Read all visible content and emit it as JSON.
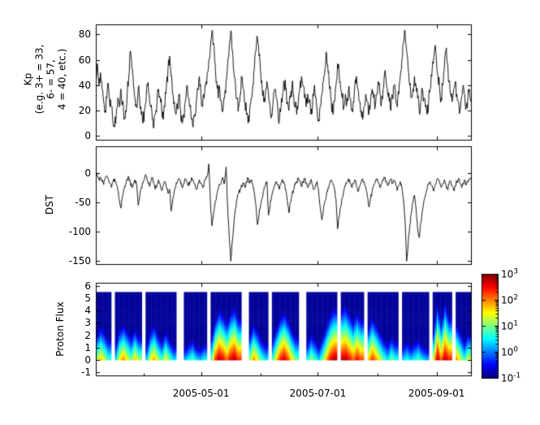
{
  "figure": {
    "background": "#ffffff",
    "line_color": "#000000"
  },
  "x_axis": {
    "range_days": [
      0,
      196
    ],
    "tick_days": [
      55,
      116,
      178
    ],
    "tick_labels": [
      "2005-05-01",
      "2005-07-01",
      "2005-09-01"
    ],
    "minor_tick_days": [
      25,
      55,
      86,
      116,
      147,
      178
    ]
  },
  "chart_data": [
    {
      "type": "line",
      "name": "kp",
      "ylabel": "Kp\n(e.g. 3+ = 33,\n6- = 57,\n4 = 40, etc.)",
      "ylim": [
        -3,
        88
      ],
      "yticks": [
        0,
        20,
        40,
        60,
        80
      ],
      "line_color": "#000000",
      "values": [
        47,
        57,
        40,
        50,
        37,
        27,
        20,
        30,
        40,
        23,
        23,
        10,
        7,
        17,
        30,
        23,
        37,
        27,
        13,
        20,
        33,
        47,
        67,
        53,
        40,
        30,
        23,
        37,
        27,
        17,
        10,
        20,
        27,
        40,
        33,
        23,
        13,
        7,
        17,
        27,
        37,
        30,
        20,
        13,
        23,
        40,
        53,
        63,
        47,
        33,
        27,
        17,
        23,
        33,
        20,
        10,
        17,
        27,
        40,
        30,
        23,
        13,
        7,
        17,
        27,
        37,
        47,
        33,
        23,
        30,
        40,
        50,
        60,
        70,
        83,
        73,
        57,
        43,
        30,
        37,
        27,
        20,
        30,
        43,
        57,
        70,
        83,
        67,
        50,
        40,
        30,
        23,
        33,
        47,
        37,
        27,
        17,
        10,
        20,
        30,
        40,
        53,
        67,
        77,
        63,
        50,
        37,
        27,
        33,
        43,
        33,
        23,
        17,
        27,
        37,
        30,
        20,
        13,
        23,
        33,
        43,
        37,
        27,
        20,
        30,
        40,
        33,
        23,
        17,
        27,
        37,
        47,
        40,
        30,
        23,
        33,
        27,
        17,
        23,
        37,
        30,
        20,
        13,
        23,
        33,
        43,
        53,
        65,
        50,
        37,
        27,
        17,
        27,
        40,
        57,
        50,
        37,
        30,
        23,
        33,
        27,
        37,
        30,
        20,
        27,
        40,
        47,
        37,
        27,
        20,
        13,
        23,
        33,
        27,
        17,
        27,
        37,
        30,
        23,
        33,
        43,
        33,
        27,
        37,
        50,
        43,
        33,
        27,
        20,
        30,
        40,
        30,
        23,
        33,
        47,
        60,
        73,
        83,
        67,
        53,
        40,
        30,
        37,
        47,
        40,
        30,
        20,
        27,
        37,
        30,
        23,
        17,
        27,
        37,
        47,
        57,
        70,
        60,
        47,
        37,
        30,
        40,
        53,
        67,
        57,
        43,
        33,
        27,
        37,
        43,
        33,
        27,
        20,
        30,
        40,
        33,
        23,
        30,
        37,
        27
      ]
    },
    {
      "type": "line",
      "name": "dst",
      "ylabel": "DST",
      "ylim": [
        -155,
        45
      ],
      "yticks": [
        0,
        -50,
        -100,
        -150
      ],
      "line_color": "#000000",
      "values": [
        5,
        -5,
        -12,
        -8,
        -15,
        -20,
        -10,
        -5,
        -12,
        -18,
        -25,
        -15,
        -10,
        -20,
        -30,
        -45,
        -60,
        -40,
        -28,
        -20,
        -12,
        -8,
        -15,
        -25,
        -18,
        -12,
        -20,
        -55,
        -38,
        -25,
        -18,
        -10,
        -5,
        -15,
        -22,
        -15,
        -8,
        -18,
        -28,
        -20,
        -12,
        -20,
        -30,
        -22,
        -15,
        -25,
        -35,
        -28,
        -65,
        -45,
        -32,
        -22,
        -15,
        -10,
        -18,
        -25,
        -18,
        -10,
        -15,
        -22,
        -15,
        -8,
        -12,
        -20,
        -28,
        -20,
        -12,
        -18,
        -25,
        -18,
        -10,
        -5,
        15,
        -50,
        -90,
        -70,
        -50,
        -38,
        -28,
        -20,
        -15,
        -10,
        -18,
        10,
        -60,
        -110,
        -150,
        -115,
        -85,
        -60,
        -45,
        -35,
        -28,
        -22,
        -18,
        -25,
        -15,
        -10,
        -18,
        -12,
        -20,
        -35,
        -55,
        -88,
        -70,
        -55,
        -42,
        -30,
        -22,
        -15,
        -72,
        -55,
        -40,
        -30,
        -22,
        -15,
        -20,
        -28,
        -18,
        -12,
        -18,
        -28,
        -48,
        -68,
        -50,
        -38,
        -28,
        -20,
        -15,
        -10,
        -15,
        -22,
        -15,
        -10,
        -18,
        -25,
        -18,
        -12,
        -20,
        -28,
        -20,
        -15,
        -35,
        -60,
        -80,
        -62,
        -48,
        -35,
        -25,
        -18,
        -12,
        -18,
        -28,
        -45,
        -95,
        -75,
        -58,
        -42,
        -30,
        -22,
        -15,
        -10,
        -18,
        -25,
        -18,
        -12,
        -22,
        -32,
        -24,
        -16,
        -10,
        -15,
        -25,
        -40,
        -58,
        -45,
        -32,
        -22,
        -15,
        -10,
        -18,
        -25,
        -18,
        -12,
        -8,
        -15,
        -22,
        -15,
        -10,
        -18,
        -12,
        -20,
        -30,
        -22,
        -15,
        -25,
        -45,
        -80,
        -150,
        -120,
        -90,
        -68,
        -50,
        -38,
        -60,
        -95,
        -110,
        -85,
        -65,
        -48,
        -38,
        -28,
        -20,
        -15,
        -22,
        -30,
        -22,
        -15,
        -10,
        -18,
        -25,
        -18,
        -12,
        -20,
        -28,
        -20,
        -14,
        -22,
        -30,
        -22,
        -15,
        -10,
        -18,
        -25,
        -18,
        -12,
        -20,
        -15,
        -10,
        -8
      ]
    },
    {
      "type": "heatmap",
      "name": "proton-flux",
      "ylabel": "Proton Flux",
      "ylim": [
        -1.25,
        6.25
      ],
      "yticks": [
        -1,
        0,
        1,
        2,
        3,
        4,
        5,
        6
      ],
      "bar_y_range": [
        0,
        5.5
      ],
      "colormap": "jet",
      "colorbar": {
        "scale": "log",
        "base": "10",
        "tick_exponents": [
          3,
          2,
          1,
          0,
          -1
        ],
        "tick_labels": [
          "10^3",
          "10^2",
          "10^1",
          "10^0",
          "10^-1"
        ]
      },
      "columns": [
        [
          0,
          1.2,
          2.2
        ],
        [
          2,
          1.8,
          2.8
        ],
        [
          4,
          1.4,
          2.4
        ],
        [
          6,
          0.8,
          1.8
        ],
        [
          10,
          0.5,
          1.5
        ],
        [
          12,
          1.6,
          2.6
        ],
        [
          14,
          2.0,
          3.0
        ],
        [
          16,
          1.5,
          2.5
        ],
        [
          18,
          1.0,
          2.0
        ],
        [
          20,
          1.8,
          2.6
        ],
        [
          22,
          1.2,
          2.0
        ],
        [
          26,
          0.4,
          1.2
        ],
        [
          28,
          1.5,
          2.4
        ],
        [
          30,
          1.9,
          3.0
        ],
        [
          32,
          1.3,
          2.2
        ],
        [
          34,
          0.8,
          1.6
        ],
        [
          36,
          1.6,
          2.4
        ],
        [
          38,
          1.0,
          1.8
        ],
        [
          40,
          0.5,
          1.2
        ],
        [
          46,
          0.3,
          1.0
        ],
        [
          48,
          0.6,
          1.4
        ],
        [
          50,
          0.9,
          1.8
        ],
        [
          52,
          0.5,
          1.2
        ],
        [
          54,
          0.3,
          1.0
        ],
        [
          56,
          0.6,
          1.4
        ],
        [
          60,
          1.0,
          2.0
        ],
        [
          62,
          2.4,
          3.4
        ],
        [
          64,
          2.9,
          4.2
        ],
        [
          66,
          2.6,
          3.8
        ],
        [
          68,
          2.2,
          3.2
        ],
        [
          70,
          2.7,
          4.0
        ],
        [
          72,
          2.9,
          4.4
        ],
        [
          74,
          2.4,
          3.5
        ],
        [
          80,
          1.2,
          2.2
        ],
        [
          82,
          2.0,
          3.0
        ],
        [
          84,
          1.5,
          2.5
        ],
        [
          86,
          0.9,
          1.8
        ],
        [
          88,
          0.5,
          1.4
        ],
        [
          92,
          0.8,
          1.8
        ],
        [
          94,
          1.8,
          2.8
        ],
        [
          96,
          2.5,
          3.6
        ],
        [
          98,
          2.8,
          4.0
        ],
        [
          100,
          2.3,
          3.4
        ],
        [
          102,
          1.6,
          2.6
        ],
        [
          104,
          1.0,
          2.0
        ],
        [
          110,
          0.6,
          1.5
        ],
        [
          112,
          1.2,
          2.2
        ],
        [
          114,
          0.8,
          1.8
        ],
        [
          116,
          0.4,
          1.2
        ],
        [
          118,
          1.0,
          2.0
        ],
        [
          120,
          1.9,
          2.9
        ],
        [
          122,
          2.6,
          3.8
        ],
        [
          124,
          2.9,
          4.3
        ],
        [
          128,
          2.8,
          4.2
        ],
        [
          130,
          2.9,
          4.5
        ],
        [
          132,
          2.6,
          3.9
        ],
        [
          134,
          2.2,
          3.3
        ],
        [
          136,
          2.6,
          4.0
        ],
        [
          138,
          2.3,
          3.4
        ],
        [
          142,
          1.8,
          2.8
        ],
        [
          144,
          2.4,
          3.6
        ],
        [
          146,
          2.0,
          3.0
        ],
        [
          148,
          1.4,
          2.4
        ],
        [
          150,
          0.9,
          1.8
        ],
        [
          152,
          0.5,
          1.4
        ],
        [
          154,
          1.1,
          2.0
        ],
        [
          156,
          0.7,
          1.6
        ],
        [
          160,
          0.4,
          1.2
        ],
        [
          162,
          0.7,
          1.6
        ],
        [
          164,
          0.4,
          1.2
        ],
        [
          166,
          0.6,
          1.5
        ],
        [
          168,
          0.9,
          1.8
        ],
        [
          170,
          0.5,
          1.3
        ],
        [
          172,
          0.3,
          1.0
        ],
        [
          176,
          1.5,
          2.5
        ],
        [
          178,
          2.9,
          4.6
        ],
        [
          180,
          2.2,
          3.2
        ],
        [
          182,
          2.9,
          4.8
        ],
        [
          184,
          2.5,
          3.6
        ],
        [
          188,
          2.0,
          3.0
        ],
        [
          190,
          1.4,
          2.4
        ],
        [
          192,
          0.8,
          1.6
        ],
        [
          194,
          1.4,
          2.2
        ]
      ]
    }
  ]
}
